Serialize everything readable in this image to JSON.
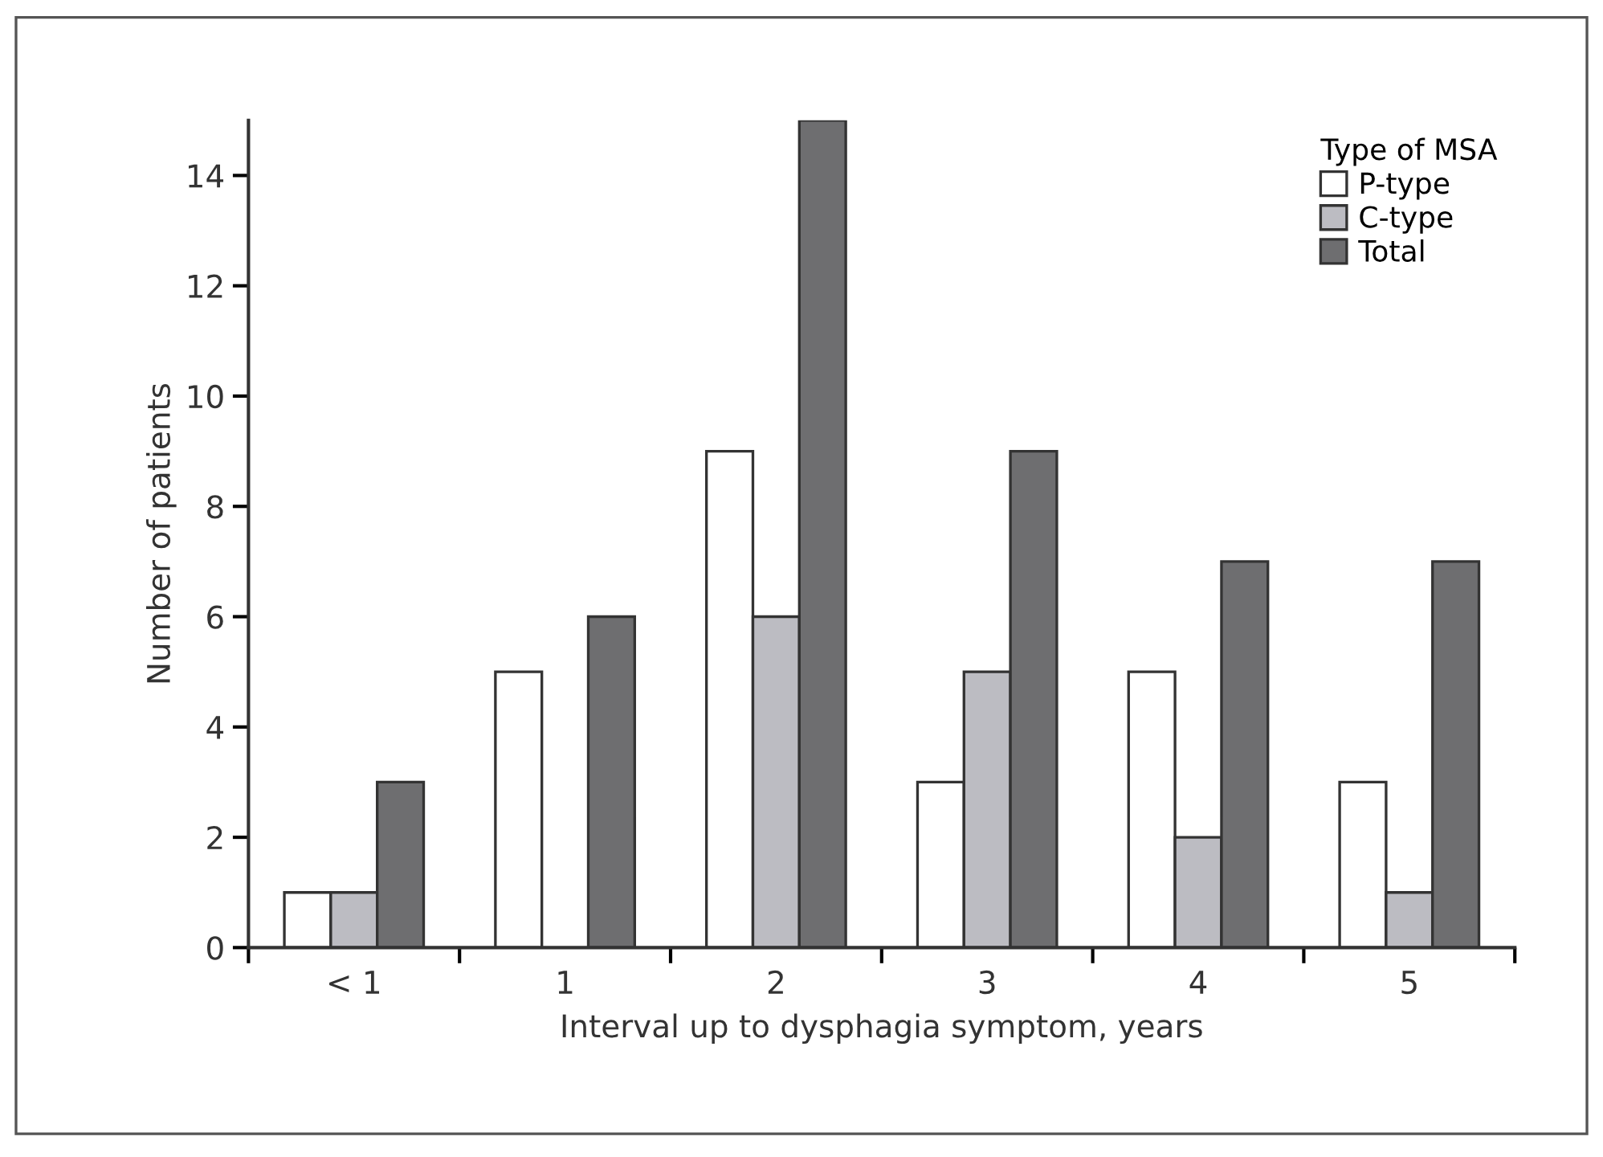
{
  "chart_data": {
    "type": "bar",
    "xlabel": "Interval up to dysphagia symptom, years",
    "ylabel": "Number of patients",
    "legend_title": "Type of MSA",
    "categories": [
      "< 1",
      "1",
      "2",
      "3",
      "4",
      "5"
    ],
    "series": [
      {
        "name": "P-type",
        "color": "#ffffff",
        "values": [
          1,
          5,
          9,
          3,
          5,
          3
        ]
      },
      {
        "name": "C-type",
        "color": "#bcbcc2",
        "values": [
          1,
          null,
          6,
          5,
          2,
          1
        ]
      },
      {
        "name": "Total",
        "color": "#6e6e70",
        "values": [
          3,
          6,
          15,
          9,
          7,
          7
        ]
      }
    ],
    "ylim": [
      0,
      15
    ],
    "yticks": [
      0,
      2,
      4,
      6,
      8,
      10,
      12,
      14
    ],
    "grid": false,
    "legend": "top right"
  }
}
